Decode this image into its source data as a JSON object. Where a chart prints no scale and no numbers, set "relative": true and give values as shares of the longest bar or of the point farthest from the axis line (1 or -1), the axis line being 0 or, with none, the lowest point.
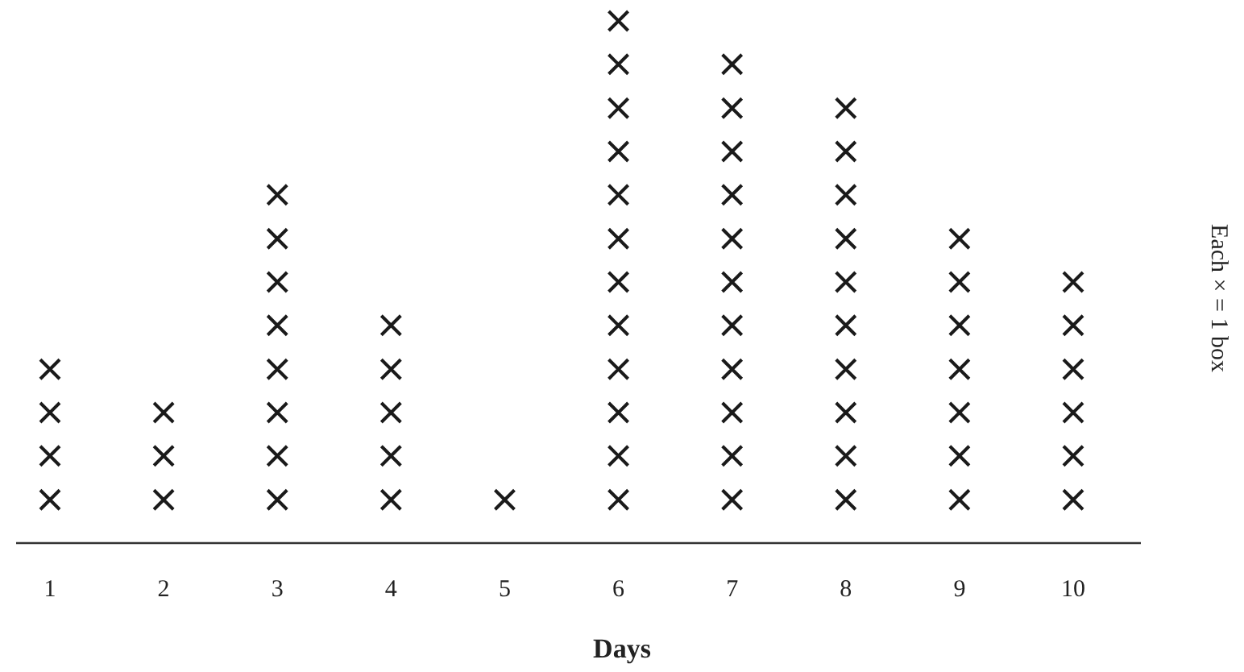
{
  "chart_data": {
    "type": "scatter",
    "xlabel": "Days",
    "categories": [
      "1",
      "2",
      "3",
      "4",
      "5",
      "6",
      "7",
      "8",
      "9",
      "10"
    ],
    "series": [
      {
        "color": "#1a1a1a",
        "x": [
          "1",
          "1",
          "1",
          "1",
          "2",
          "2",
          "2",
          "3",
          "3",
          "3",
          "3",
          "3",
          "3",
          "3",
          "3",
          "4",
          "4",
          "4",
          "4",
          "4",
          "5",
          "6",
          "6",
          "6",
          "6",
          "6",
          "6",
          "6",
          "6",
          "6",
          "6",
          "6",
          "6",
          "7",
          "7",
          "7",
          "7",
          "7",
          "7",
          "7",
          "7",
          "7",
          "7",
          "7",
          "8",
          "8",
          "8",
          "8",
          "8",
          "8",
          "8",
          "8",
          "8",
          "8",
          "9",
          "9",
          "9",
          "9",
          "9",
          "9",
          "9",
          "10",
          "10",
          "10",
          "10",
          "10",
          "10"
        ],
        "values": [
          0.083,
          0.167,
          0.25,
          0.333,
          0.083,
          0.167,
          0.25,
          0.083,
          0.167,
          0.25,
          0.333,
          0.417,
          0.5,
          0.583,
          0.667,
          0.083,
          0.167,
          0.25,
          0.333,
          0.417,
          0.083,
          0.083,
          0.167,
          0.25,
          0.333,
          0.417,
          0.5,
          0.583,
          0.667,
          0.75,
          0.833,
          0.917,
          1,
          0.083,
          0.167,
          0.25,
          0.333,
          0.417,
          0.5,
          0.583,
          0.667,
          0.75,
          0.833,
          0.917,
          0.083,
          0.167,
          0.25,
          0.333,
          0.417,
          0.5,
          0.583,
          0.667,
          0.75,
          0.833,
          0.083,
          0.167,
          0.25,
          0.333,
          0.417,
          0.5,
          0.583,
          0.083,
          0.167,
          0.25,
          0.333,
          0.417,
          0.5
        ]
      }
    ],
    "relative": true,
    "tick_labels": "x",
    "marker": "cross",
    "annotations": [
      "Each × = 1 box"
    ]
  }
}
